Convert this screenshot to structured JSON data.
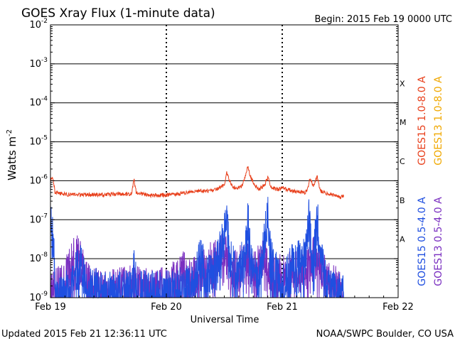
{
  "chart_data": {
    "type": "line",
    "title": "GOES Xray Flux (1-minute data)",
    "begin_label": "Begin:  2015 Feb 19 0000 UTC",
    "xlabel": "Universal Time",
    "ylabel": "Watts m",
    "ylabel_sup": "-2",
    "x_ticks": [
      {
        "label": "Feb 19",
        "day": 0
      },
      {
        "label": "Feb 20",
        "day": 1
      },
      {
        "label": "Feb 21",
        "day": 2
      },
      {
        "label": "Feb 22",
        "day": 3
      }
    ],
    "xlim_days": [
      0,
      3
    ],
    "y_scale": "log",
    "ylim": [
      1e-09,
      0.01
    ],
    "y_ticks": [
      {
        "base": "10",
        "exp": "-2"
      },
      {
        "base": "10",
        "exp": "-3"
      },
      {
        "base": "10",
        "exp": "-4"
      },
      {
        "base": "10",
        "exp": "-5"
      },
      {
        "base": "10",
        "exp": "-6"
      },
      {
        "base": "10",
        "exp": "-7"
      },
      {
        "base": "10",
        "exp": "-8"
      },
      {
        "base": "10",
        "exp": "-9"
      }
    ],
    "flare_classes": [
      "X",
      "M",
      "C",
      "B",
      "A"
    ],
    "legend": [
      {
        "name": "GOES15 1.0-8.0 A",
        "color": "#e8401c"
      },
      {
        "name": "GOES13 1.0-8.0 A",
        "color": "#f0a800"
      },
      {
        "name": "GOES15 0.5-4.0 A",
        "color": "#1f4fe0"
      },
      {
        "name": "GOES13 0.5-4.0 A",
        "color": "#7a2fc0"
      }
    ],
    "data_end_day": 2.53,
    "series": [
      {
        "name": "GOES15 1.0-8.0 A",
        "color": "#e8401c",
        "points": [
          [
            0.0,
            1e-06
          ],
          [
            0.02,
            1.2e-06
          ],
          [
            0.04,
            5e-07
          ],
          [
            0.1,
            4.6e-07
          ],
          [
            0.2,
            4.3e-07
          ],
          [
            0.4,
            4.4e-07
          ],
          [
            0.6,
            4.5e-07
          ],
          [
            0.7,
            4.6e-07
          ],
          [
            0.72,
            1.1e-06
          ],
          [
            0.74,
            5e-07
          ],
          [
            0.85,
            4.2e-07
          ],
          [
            1.0,
            4.3e-07
          ],
          [
            1.1,
            4.6e-07
          ],
          [
            1.2,
            5.1e-07
          ],
          [
            1.3,
            5.4e-07
          ],
          [
            1.4,
            5.5e-07
          ],
          [
            1.45,
            6.4e-07
          ],
          [
            1.5,
            8e-07
          ],
          [
            1.52,
            1.6e-06
          ],
          [
            1.56,
            8e-07
          ],
          [
            1.6,
            6.2e-07
          ],
          [
            1.65,
            7.3e-07
          ],
          [
            1.68,
            1.2e-06
          ],
          [
            1.7,
            2.3e-06
          ],
          [
            1.73,
            1.2e-06
          ],
          [
            1.76,
            8e-07
          ],
          [
            1.8,
            6e-07
          ],
          [
            1.85,
            8e-07
          ],
          [
            1.88,
            1.3e-06
          ],
          [
            1.9,
            7e-07
          ],
          [
            1.95,
            6e-07
          ],
          [
            2.0,
            6.4e-07
          ],
          [
            2.1,
            5.5e-07
          ],
          [
            2.2,
            5e-07
          ],
          [
            2.22,
            6.4e-07
          ],
          [
            2.24,
            1.2e-06
          ],
          [
            2.27,
            7e-07
          ],
          [
            2.3,
            1.3e-06
          ],
          [
            2.33,
            5.5e-07
          ],
          [
            2.4,
            4.6e-07
          ],
          [
            2.5,
            3.8e-07
          ],
          [
            2.53,
            4e-07
          ]
        ]
      },
      {
        "name": "GOES13 1.0-8.0 A",
        "color": "#f0a800",
        "points": []
      },
      {
        "name": "GOES15 0.5-4.0 A",
        "color": "#1f4fe0",
        "points": [
          [
            0.0,
            1e-07
          ],
          [
            0.02,
            3e-08
          ],
          [
            0.05,
            1.2e-09
          ],
          [
            0.15,
            1.5e-09
          ],
          [
            0.27,
            1e-08
          ],
          [
            0.3,
            2e-09
          ],
          [
            0.5,
            1.3e-09
          ],
          [
            0.7,
            1.5e-09
          ],
          [
            0.72,
            6e-09
          ],
          [
            0.75,
            1.5e-09
          ],
          [
            1.0,
            1.5e-09
          ],
          [
            1.2,
            2e-09
          ],
          [
            1.3,
            1e-08
          ],
          [
            1.35,
            3e-09
          ],
          [
            1.45,
            1e-08
          ],
          [
            1.5,
            5e-08
          ],
          [
            1.52,
            1e-07
          ],
          [
            1.55,
            1e-08
          ],
          [
            1.6,
            5e-09
          ],
          [
            1.68,
            1e-08
          ],
          [
            1.7,
            1.9e-07
          ],
          [
            1.73,
            1e-08
          ],
          [
            1.8,
            3e-09
          ],
          [
            1.85,
            4e-08
          ],
          [
            1.88,
            1.3e-07
          ],
          [
            1.9,
            1e-08
          ],
          [
            2.0,
            2e-09
          ],
          [
            2.1,
            1e-08
          ],
          [
            2.2,
            1e-08
          ],
          [
            2.23,
            1.7e-07
          ],
          [
            2.26,
            5e-09
          ],
          [
            2.3,
            1.4e-07
          ],
          [
            2.33,
            1e-08
          ],
          [
            2.4,
            1.5e-09
          ],
          [
            2.5,
            1.2e-09
          ],
          [
            2.53,
            1e-09
          ]
        ]
      },
      {
        "name": "GOES13 0.5-4.0 A",
        "color": "#7a2fc0",
        "points": [
          [
            0.0,
            1.5e-09
          ],
          [
            0.1,
            2e-09
          ],
          [
            0.22,
            1.5e-08
          ],
          [
            0.25,
            1e-08
          ],
          [
            0.35,
            1.8e-09
          ],
          [
            0.5,
            1.5e-09
          ],
          [
            0.7,
            2e-09
          ],
          [
            0.9,
            1.5e-09
          ],
          [
            1.0,
            2e-09
          ],
          [
            1.1,
            3e-09
          ],
          [
            1.18,
            6e-09
          ],
          [
            1.2,
            3e-09
          ],
          [
            1.3,
            5e-09
          ],
          [
            1.4,
            1e-08
          ],
          [
            1.45,
            8e-09
          ],
          [
            1.5,
            2e-08
          ],
          [
            1.55,
            4e-09
          ],
          [
            1.6,
            5e-09
          ],
          [
            1.7,
            1e-08
          ],
          [
            1.75,
            4e-09
          ],
          [
            1.85,
            1.2e-08
          ],
          [
            1.9,
            3e-09
          ],
          [
            2.0,
            4e-09
          ],
          [
            2.1,
            5e-09
          ],
          [
            2.2,
            4e-09
          ],
          [
            2.25,
            1e-08
          ],
          [
            2.3,
            1e-08
          ],
          [
            2.35,
            4e-09
          ],
          [
            2.45,
            2e-09
          ],
          [
            2.53,
            1.5e-09
          ]
        ]
      }
    ]
  },
  "footer": {
    "updated": "Updated 2015 Feb 21 12:36:11 UTC",
    "source": "NOAA/SWPC Boulder, CO USA"
  }
}
